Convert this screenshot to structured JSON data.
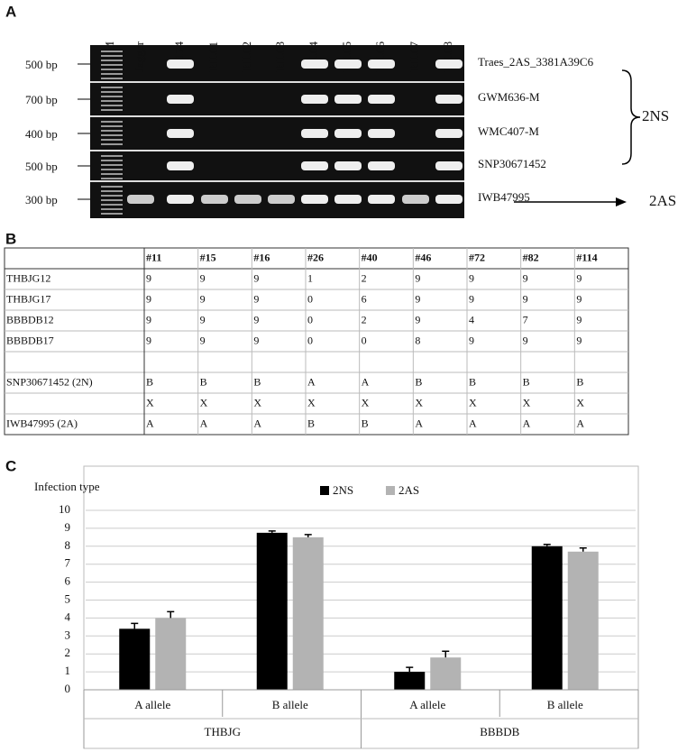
{
  "panel_a": {
    "label": "A",
    "lanes": [
      "M",
      "Jagger",
      "2174",
      "RIL01",
      "RIL02",
      "RIL03",
      "RIL04",
      "RIL05",
      "RIL06",
      "RIL07",
      "RIL08"
    ],
    "rows": [
      {
        "size": "500 bp",
        "marker": "Traes_2AS_3381A39C6"
      },
      {
        "size": "700 bp",
        "marker": "GWM636-M"
      },
      {
        "size": "400 bp",
        "marker": "WMC407-M"
      },
      {
        "size": "500 bp",
        "marker": "SNP30671452"
      },
      {
        "size": "300 bp",
        "marker": "IWB47995"
      }
    ],
    "group_label": "2NS",
    "arrow_label": "2AS"
  },
  "panel_b": {
    "label": "B",
    "table": {
      "header": [
        null,
        "#11",
        "#15",
        "#16",
        "#26",
        "#40",
        "#46",
        "#72",
        "#82",
        "#114"
      ],
      "rows": [
        [
          "THBJG12",
          "9",
          "9",
          "9",
          "1",
          "2",
          "9",
          "9",
          "9",
          "9"
        ],
        [
          "THBJG17",
          "9",
          "9",
          "9",
          "0",
          "6",
          "9",
          "9",
          "9",
          "9"
        ],
        [
          "BBBDB12",
          "9",
          "9",
          "9",
          "0",
          "2",
          "9",
          "4",
          "7",
          "9"
        ],
        [
          "BBBDB17",
          "9",
          "9",
          "9",
          "0",
          "0",
          "8",
          "9",
          "9",
          "9"
        ],
        [
          null,
          null,
          null,
          null,
          null,
          null,
          null,
          null,
          null,
          null
        ],
        [
          "SNP30671452 (2N)",
          "B",
          "B",
          "B",
          "A",
          "A",
          "B",
          "B",
          "B",
          "B"
        ],
        [
          null,
          "X",
          "X",
          "X",
          "X",
          "X",
          "X",
          "X",
          "X",
          "X"
        ],
        [
          "IWB47995 (2A)",
          "A",
          "A",
          "A",
          "B",
          "B",
          "A",
          "A",
          "A",
          "A"
        ]
      ]
    }
  },
  "panel_c": {
    "label": "C"
  },
  "chart_data": {
    "type": "bar",
    "y_label": "Infection type",
    "categories": [
      "A allele",
      "B allele",
      "A allele",
      "B allele"
    ],
    "groups": [
      "THBJG",
      "BBBDB"
    ],
    "series": [
      {
        "name": "2NS",
        "color": "#000000",
        "values": [
          3.4,
          8.75,
          1.0,
          8.0
        ],
        "errors": [
          0.3,
          0.1,
          0.25,
          0.1
        ]
      },
      {
        "name": "2AS",
        "color": "#b3b3b3",
        "values": [
          4.0,
          8.5,
          1.8,
          7.7
        ],
        "errors": [
          0.35,
          0.15,
          0.35,
          0.2
        ]
      }
    ],
    "ylim": [
      0,
      10
    ],
    "yticks": [
      0,
      1,
      2,
      3,
      4,
      5,
      6,
      7,
      8,
      9,
      10
    ],
    "grid": true
  }
}
